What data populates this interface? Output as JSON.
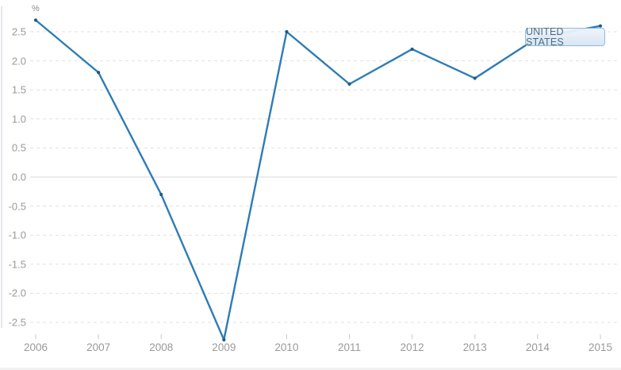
{
  "badge": {
    "label": "UNITED STATES"
  },
  "chart_data": {
    "type": "line",
    "title": "",
    "xlabel": "",
    "ylabel": "%",
    "x": [
      "2006",
      "2007",
      "2008",
      "2009",
      "2010",
      "2011",
      "2012",
      "2013",
      "2014",
      "2015"
    ],
    "series": [
      {
        "name": "UNITED STATES",
        "values": [
          2.7,
          1.8,
          -0.3,
          -2.8,
          2.5,
          1.6,
          2.2,
          1.7,
          2.4,
          2.6
        ]
      }
    ],
    "yticks": [
      2.5,
      2.0,
      1.5,
      1.0,
      0.5,
      0.0,
      -0.5,
      -1.0,
      -1.5,
      -2.0,
      -2.5
    ],
    "ylim": [
      -2.95,
      2.8
    ],
    "grid": "horizontal-dashed, solid zero line",
    "legend_position": "top-right-badge",
    "colors": {
      "line": "#2e7cb5",
      "marker": "#1c5a8a",
      "grid_dashed": "#e1e1e1",
      "grid_zero": "#d8d8d8",
      "axis_text": "#9a9a9a",
      "tick": "#c9c9c9",
      "badge_border": "#8cb8da",
      "badge_fill": "#d7e6f3",
      "badge_text": "#46677e"
    }
  }
}
